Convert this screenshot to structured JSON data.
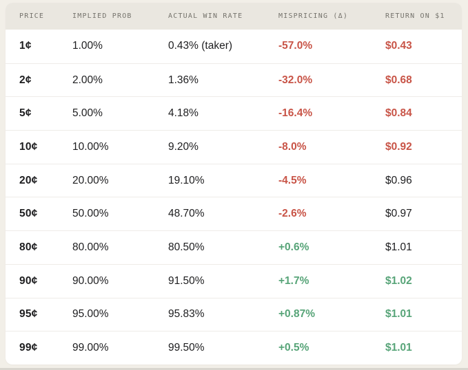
{
  "colors": {
    "negative": "#c85447",
    "positive": "#57a478",
    "neutral": "#1d1d1f",
    "header_text": "#75736c",
    "header_bg": "#eae7e0",
    "page_bg": "#f2efe8",
    "card_bg": "#ffffff"
  },
  "chart_data": {
    "type": "table",
    "columns": [
      "PRICE",
      "IMPLIED PROB",
      "ACTUAL WIN RATE",
      "MISPRICING (Δ)",
      "RETURN ON $1"
    ],
    "rows": [
      {
        "price": "1¢",
        "implied_prob": "1.00%",
        "actual_win_rate": "0.43% (taker)",
        "mispricing": "-57.0%",
        "mispricing_tone": "negative",
        "return_on_1": "$0.43",
        "return_tone": "negative"
      },
      {
        "price": "2¢",
        "implied_prob": "2.00%",
        "actual_win_rate": "1.36%",
        "mispricing": "-32.0%",
        "mispricing_tone": "negative",
        "return_on_1": "$0.68",
        "return_tone": "negative"
      },
      {
        "price": "5¢",
        "implied_prob": "5.00%",
        "actual_win_rate": "4.18%",
        "mispricing": "-16.4%",
        "mispricing_tone": "negative",
        "return_on_1": "$0.84",
        "return_tone": "negative"
      },
      {
        "price": "10¢",
        "implied_prob": "10.00%",
        "actual_win_rate": "9.20%",
        "mispricing": "-8.0%",
        "mispricing_tone": "negative",
        "return_on_1": "$0.92",
        "return_tone": "negative"
      },
      {
        "price": "20¢",
        "implied_prob": "20.00%",
        "actual_win_rate": "19.10%",
        "mispricing": "-4.5%",
        "mispricing_tone": "negative",
        "return_on_1": "$0.96",
        "return_tone": "neutral"
      },
      {
        "price": "50¢",
        "implied_prob": "50.00%",
        "actual_win_rate": "48.70%",
        "mispricing": "-2.6%",
        "mispricing_tone": "negative",
        "return_on_1": "$0.97",
        "return_tone": "neutral"
      },
      {
        "price": "80¢",
        "implied_prob": "80.00%",
        "actual_win_rate": "80.50%",
        "mispricing": "+0.6%",
        "mispricing_tone": "positive",
        "return_on_1": "$1.01",
        "return_tone": "neutral"
      },
      {
        "price": "90¢",
        "implied_prob": "90.00%",
        "actual_win_rate": "91.50%",
        "mispricing": "+1.7%",
        "mispricing_tone": "positive",
        "return_on_1": "$1.02",
        "return_tone": "positive"
      },
      {
        "price": "95¢",
        "implied_prob": "95.00%",
        "actual_win_rate": "95.83%",
        "mispricing": "+0.87%",
        "mispricing_tone": "positive",
        "return_on_1": "$1.01",
        "return_tone": "positive"
      },
      {
        "price": "99¢",
        "implied_prob": "99.00%",
        "actual_win_rate": "99.50%",
        "mispricing": "+0.5%",
        "mispricing_tone": "positive",
        "return_on_1": "$1.01",
        "return_tone": "positive"
      }
    ]
  }
}
